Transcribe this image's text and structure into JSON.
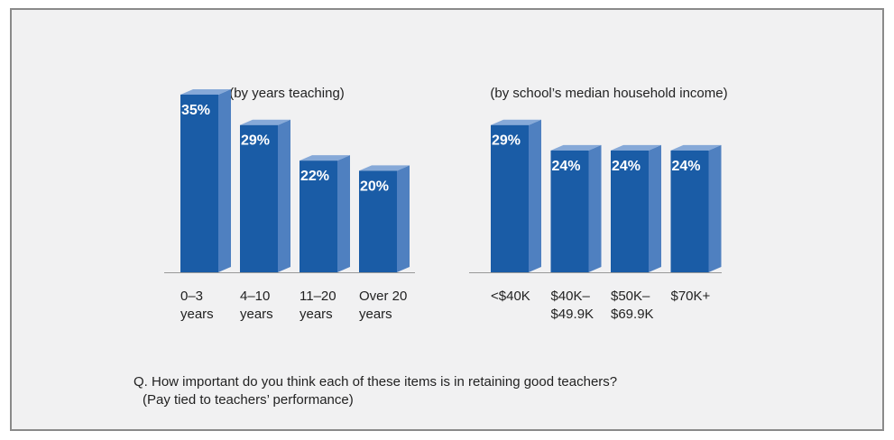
{
  "chart_data": [
    {
      "type": "bar",
      "subtitle": "(by years teaching)",
      "categories": [
        "0–3\nyears",
        "4–10\nyears",
        "11–20\nyears",
        "Over 20\nyears"
      ],
      "values": [
        35,
        29,
        22,
        20
      ],
      "value_labels": [
        "35%",
        "29%",
        "22%",
        "20%"
      ],
      "color": "#1a5ca6"
    },
    {
      "type": "bar",
      "subtitle": "(by school’s median household income)",
      "categories": [
        "<$40K",
        "$40K–\n$49.9K",
        "$50K–\n$69.9K",
        "$70K+"
      ],
      "values": [
        29,
        24,
        24,
        24
      ],
      "value_labels": [
        "29%",
        "24%",
        "24%",
        "24%"
      ],
      "color": "#1a5ca6"
    }
  ],
  "question": [
    "Q. How important do you think each of these items is in retaining good teachers?",
    "(Pay tied to teachers’ performance)"
  ]
}
